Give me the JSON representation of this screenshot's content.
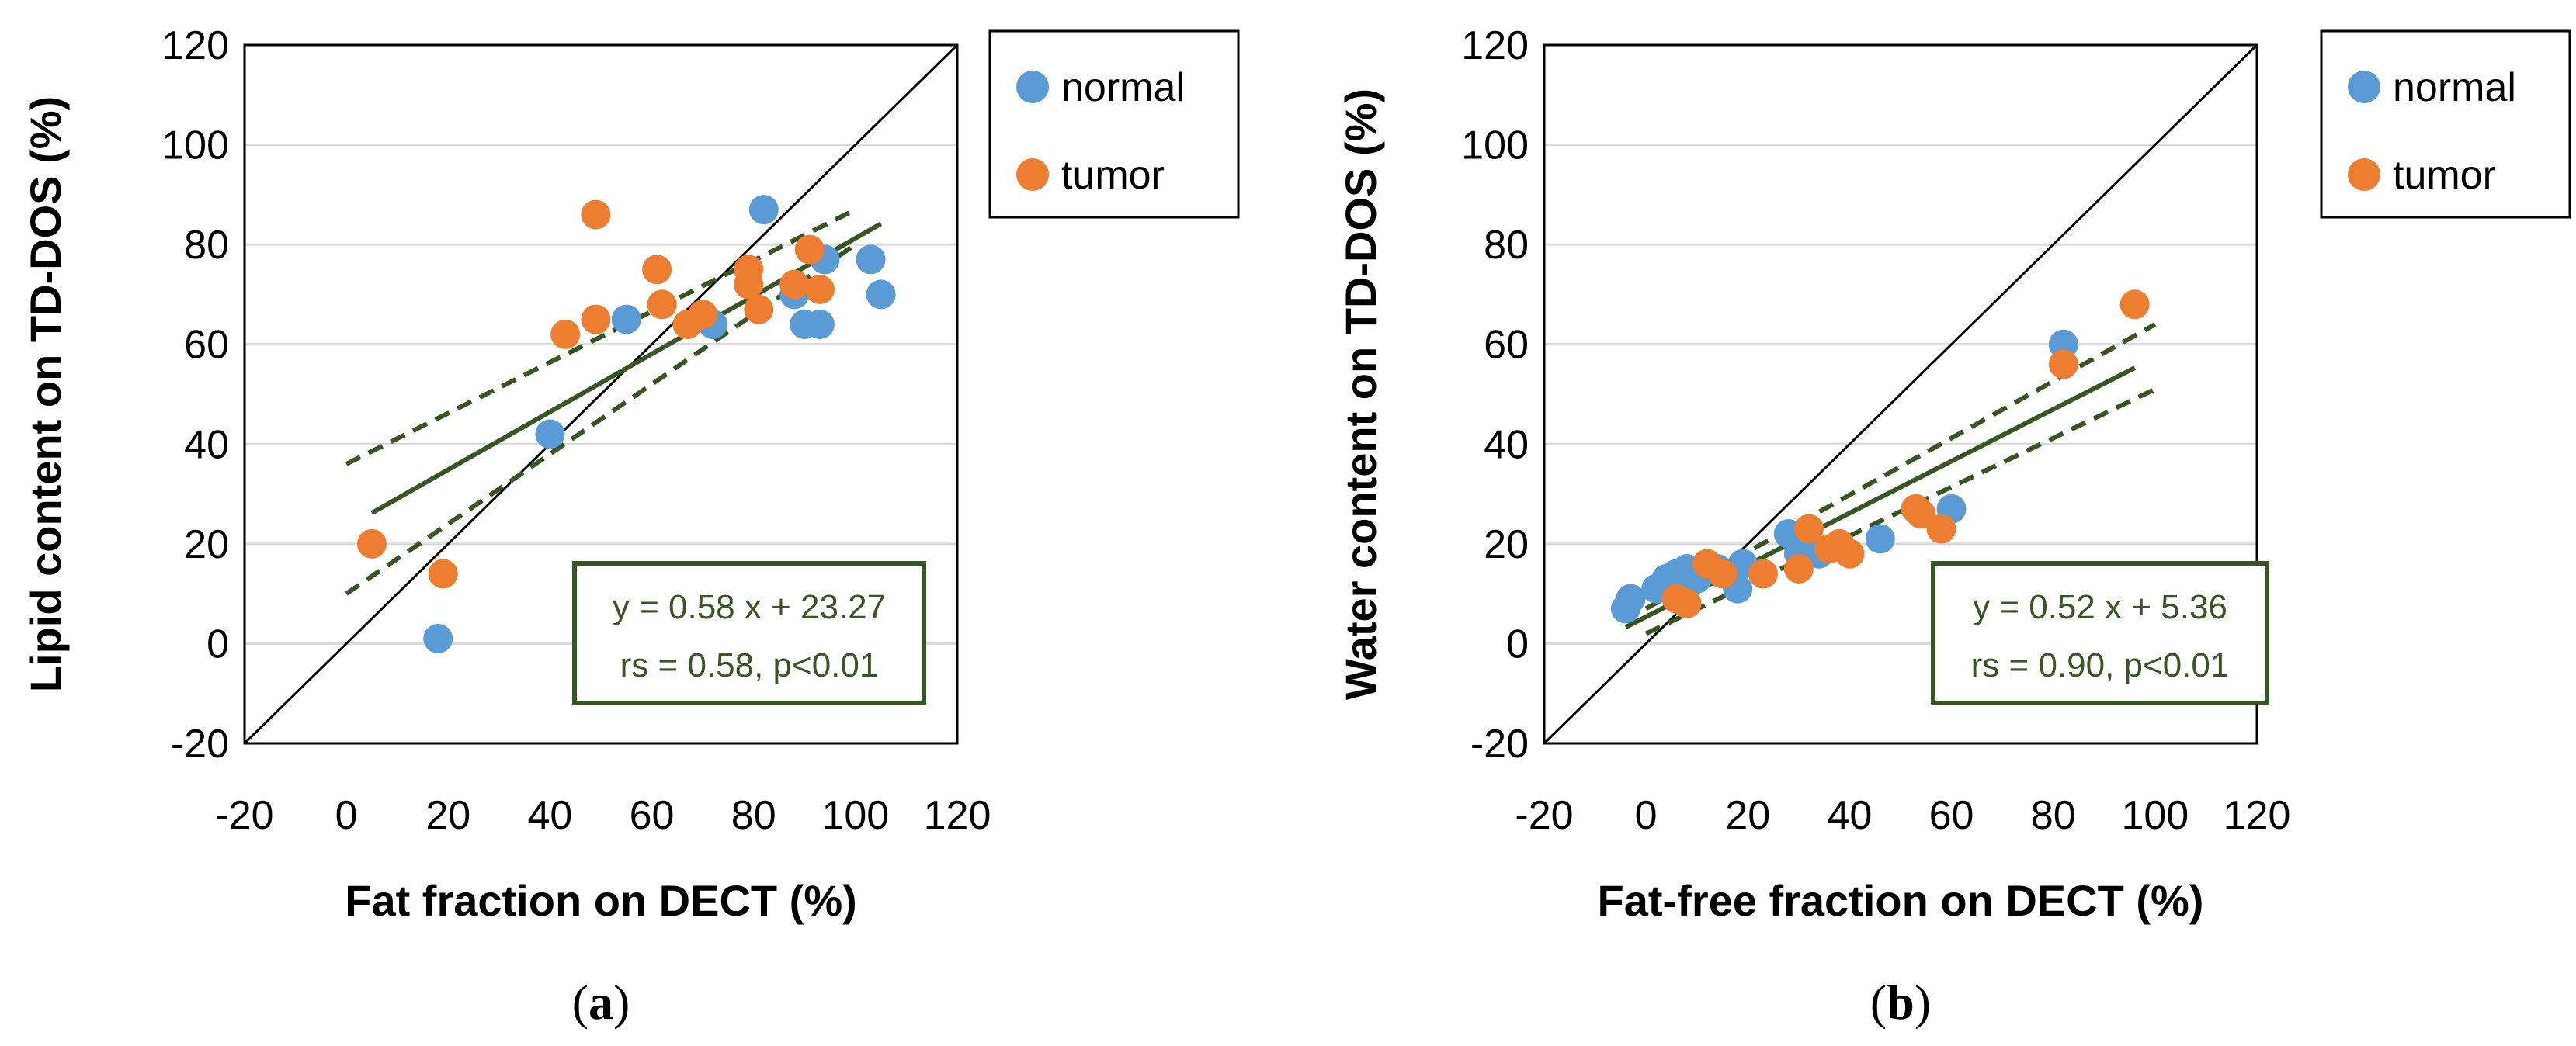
{
  "colors": {
    "normal": "#5B9BD5",
    "tumor": "#ED7D31",
    "fit": "#375623",
    "grid": "#D9D9D9",
    "identity": "#000000"
  },
  "legend": {
    "normal": "normal",
    "tumor": "tumor"
  },
  "chart_data": [
    {
      "type": "scatter",
      "caption_open": "(",
      "caption_letter": "a",
      "caption_close": ")",
      "xlabel": "Fat fraction on DECT (%)",
      "ylabel": "Lipid content on TD-DOS (%)",
      "xlim": [
        -20,
        120
      ],
      "ylim": [
        -20,
        120
      ],
      "xticks": [
        -20,
        0,
        20,
        40,
        60,
        80,
        100,
        120
      ],
      "yticks": [
        -20,
        0,
        20,
        40,
        60,
        80,
        100,
        120
      ],
      "grid": "horizontal",
      "legend_position": "outside-right-top",
      "series": [
        {
          "name": "normal",
          "points": [
            [
              18,
              1
            ],
            [
              40,
              42
            ],
            [
              55,
              65
            ],
            [
              72,
              64
            ],
            [
              82,
              87
            ],
            [
              88,
              70
            ],
            [
              90,
              64
            ],
            [
              93,
              64
            ],
            [
              94,
              77
            ],
            [
              103,
              77
            ],
            [
              105,
              70
            ]
          ]
        },
        {
          "name": "tumor",
          "points": [
            [
              5,
              20
            ],
            [
              19,
              14
            ],
            [
              43,
              62
            ],
            [
              49,
              86
            ],
            [
              49,
              65
            ],
            [
              61,
              75
            ],
            [
              62,
              68
            ],
            [
              67,
              64
            ],
            [
              70,
              66
            ],
            [
              79,
              75
            ],
            [
              79,
              72
            ],
            [
              81,
              67
            ],
            [
              88,
              72
            ],
            [
              91,
              79
            ],
            [
              93,
              71
            ]
          ]
        }
      ],
      "fit": {
        "slope": 0.58,
        "intercept": 23.27,
        "x_range": [
          5,
          105
        ]
      },
      "ci_upper": [
        [
          0,
          36
        ],
        [
          100,
          87
        ]
      ],
      "ci_lower": [
        [
          0,
          10
        ],
        [
          100,
          80
        ]
      ],
      "identity_line": true,
      "equation": "y = 0.58 x + 23.27",
      "stats": "rs = 0.58, p<0.01"
    },
    {
      "type": "scatter",
      "caption_open": "(",
      "caption_letter": "b",
      "caption_close": ")",
      "xlabel": "Fat-free fraction on DECT (%)",
      "ylabel": "Water content on TD-DOS (%)",
      "xlim": [
        -20,
        120
      ],
      "ylim": [
        -20,
        120
      ],
      "xticks": [
        -20,
        0,
        20,
        40,
        60,
        80,
        100,
        120
      ],
      "yticks": [
        -20,
        0,
        20,
        40,
        60,
        80,
        100,
        120
      ],
      "grid": "horizontal",
      "legend_position": "outside-right-top",
      "series": [
        {
          "name": "normal",
          "points": [
            [
              -4,
              7
            ],
            [
              -3,
              9
            ],
            [
              2,
              11
            ],
            [
              4,
              13
            ],
            [
              5,
              12
            ],
            [
              6,
              14
            ],
            [
              8,
              15
            ],
            [
              10,
              13
            ],
            [
              14,
              15
            ],
            [
              18,
              11
            ],
            [
              19,
              16
            ],
            [
              28,
              22
            ],
            [
              30,
              18
            ],
            [
              34,
              18
            ],
            [
              46,
              21
            ],
            [
              60,
              27
            ],
            [
              82,
              60
            ]
          ]
        },
        {
          "name": "tumor",
          "points": [
            [
              6,
              9
            ],
            [
              8,
              8
            ],
            [
              12,
              16
            ],
            [
              15,
              14
            ],
            [
              23,
              14
            ],
            [
              30,
              15
            ],
            [
              32,
              23
            ],
            [
              36,
              19
            ],
            [
              38,
              20
            ],
            [
              40,
              18
            ],
            [
              53,
              27
            ],
            [
              54,
              26
            ],
            [
              58,
              23
            ],
            [
              82,
              56
            ],
            [
              96,
              68
            ]
          ]
        }
      ],
      "fit": {
        "slope": 0.52,
        "intercept": 5.36,
        "x_range": [
          -4,
          96
        ]
      },
      "ci_upper": [
        [
          0,
          7
        ],
        [
          100,
          64
        ]
      ],
      "ci_lower": [
        [
          0,
          2
        ],
        [
          100,
          51
        ]
      ],
      "identity_line": true,
      "equation": "y = 0.52 x + 5.36",
      "stats": "rs = 0.90, p<0.01"
    }
  ]
}
